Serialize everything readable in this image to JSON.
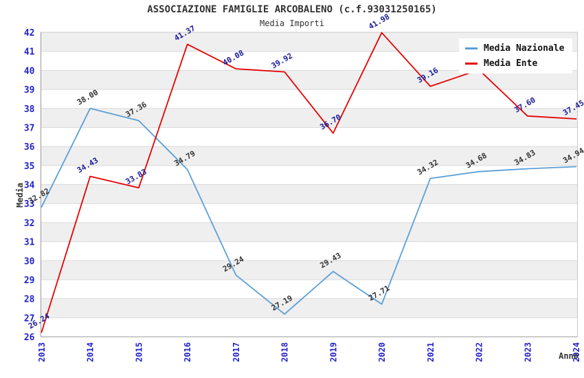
{
  "chart_data": {
    "type": "line",
    "title": "ASSOCIAZIONE FAMIGLIE ARCOBALENO (c.f.93031250165)",
    "subtitle": "Media Importi",
    "xlabel": "Anno",
    "ylabel": "Media",
    "x": [
      "2013",
      "2014",
      "2015",
      "2016",
      "2017",
      "2018",
      "2019",
      "2020",
      "2021",
      "2022",
      "2023",
      "2024"
    ],
    "ylim": [
      26,
      42
    ],
    "ytick_step": 1,
    "grid": "horizontal-bands",
    "legend_position": "top-right",
    "series": [
      {
        "name": "Media Nazionale",
        "color": "#5b9fd8",
        "label_color": "#333333",
        "values": [
          32.82,
          38.0,
          37.36,
          34.79,
          29.24,
          27.19,
          29.43,
          27.71,
          34.32,
          34.68,
          34.83,
          34.94
        ]
      },
      {
        "name": "Media Ente",
        "color": "#e60000",
        "label_color": "#1a1a99",
        "values": [
          26.24,
          34.43,
          33.83,
          41.37,
          40.08,
          39.92,
          36.7,
          41.98,
          39.16,
          40.03,
          37.6,
          37.45
        ],
        "hidden_label_indices": [
          9
        ]
      }
    ],
    "style": {
      "band_fill": "#efefef",
      "grid_color": "#d9d9d9",
      "border_color": "#c8c8c8",
      "axis_color": "#999999",
      "tick_label_color": "#2323cc",
      "background": "#ffffff"
    }
  }
}
